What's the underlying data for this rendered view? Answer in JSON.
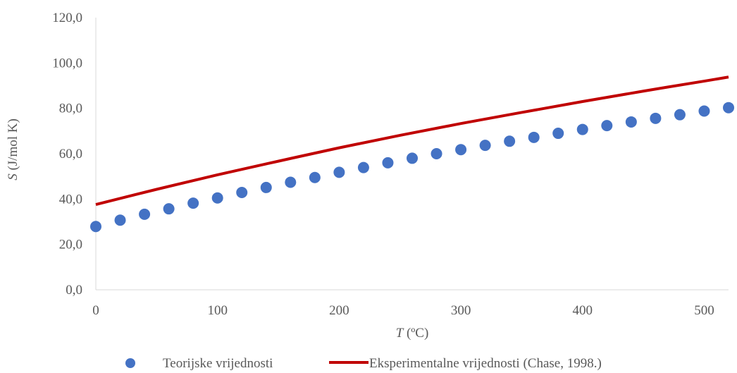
{
  "chart_data": {
    "type": "scatter",
    "title": "",
    "xlabel": {
      "var": "T",
      "unit": " (ºC)"
    },
    "ylabel": {
      "var": "S",
      "unit": " (J/mol K)"
    },
    "xlim": [
      0,
      520
    ],
    "ylim": [
      0,
      120
    ],
    "x_ticks": [
      "0",
      "100",
      "200",
      "300",
      "400",
      "500"
    ],
    "x_tick_values": [
      0,
      100,
      200,
      300,
      400,
      500
    ],
    "y_ticks": [
      "0,0",
      "20,0",
      "40,0",
      "60,0",
      "80,0",
      "100,0",
      "120,0"
    ],
    "y_tick_values": [
      0,
      20,
      40,
      60,
      80,
      100,
      120
    ],
    "grid": false,
    "legend_position": "bottom",
    "series": [
      {
        "name": "Teorijske vrijednosti",
        "kind": "markers",
        "color": "#4472C4",
        "x": [
          0,
          20,
          40,
          60,
          80,
          100,
          120,
          140,
          160,
          180,
          200,
          220,
          240,
          260,
          280,
          300,
          320,
          340,
          360,
          380,
          400,
          420,
          440,
          460,
          480,
          500,
          520
        ],
        "y": [
          27.9,
          30.7,
          33.3,
          35.7,
          38.2,
          40.5,
          42.9,
          45.1,
          47.4,
          49.5,
          51.8,
          53.9,
          56.0,
          58.0,
          60.0,
          61.8,
          63.7,
          65.5,
          67.2,
          69.0,
          70.7,
          72.4,
          74.0,
          75.6,
          77.2,
          78.8,
          80.3
        ]
      },
      {
        "name": "Eksperimentalne vrijednosti (Chase, 1998.)",
        "kind": "line",
        "color": "#C00000",
        "x": [
          0,
          50,
          100,
          150,
          200,
          250,
          300,
          350,
          400,
          450,
          500,
          520
        ],
        "y": [
          37.6,
          44.3,
          50.7,
          56.7,
          62.6,
          68.1,
          73.3,
          78.2,
          83.0,
          87.6,
          92.0,
          93.8
        ]
      }
    ]
  }
}
